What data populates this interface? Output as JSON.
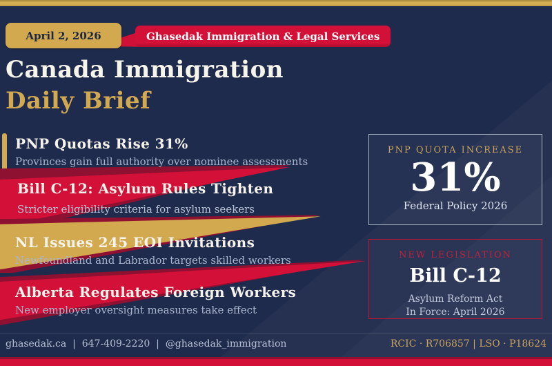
{
  "header": {
    "date": "April 2, 2026",
    "company": "Ghasedak Immigration & Legal Services",
    "title_line1": "Canada Immigration",
    "title_line2": "Daily Brief"
  },
  "news": [
    {
      "headline": "PNP Quotas Rise 31%",
      "subtext": "Provinces gain full authority over nominee assessments"
    },
    {
      "headline": "Bill C-12: Asylum Rules Tighten",
      "subtext": "Stricter eligibility criteria for asylum seekers"
    },
    {
      "headline": "NL Issues 245 EOI Invitations",
      "subtext": "Newfoundland and Labrador targets skilled workers"
    },
    {
      "headline": "Alberta Regulates Foreign Workers",
      "subtext": "New employer oversight measures take effect"
    }
  ],
  "cards": [
    {
      "label": "PNP QUOTA INCREASE",
      "value": "31%",
      "caption": "Federal Policy 2026"
    },
    {
      "label": "NEW LEGISLATION",
      "value": "Bill C-12",
      "caption_line1": "Asylum Reform Act",
      "caption_line2": "In Force: April 2026"
    }
  ],
  "footer": {
    "contact": "ghasedak.ca  |  647-409-2220  |  @ghasedak_immigration",
    "credentials": "RCIC · R706857 | LSO · P18624"
  },
  "colors": {
    "background_navy": "#1f2b4d",
    "accent_gold": "#d2a94e",
    "accent_crimson": "#d31038",
    "accent_maroon": "#8e1132",
    "text_light": "#f5f3ec",
    "text_muted": "#aab6ce"
  }
}
